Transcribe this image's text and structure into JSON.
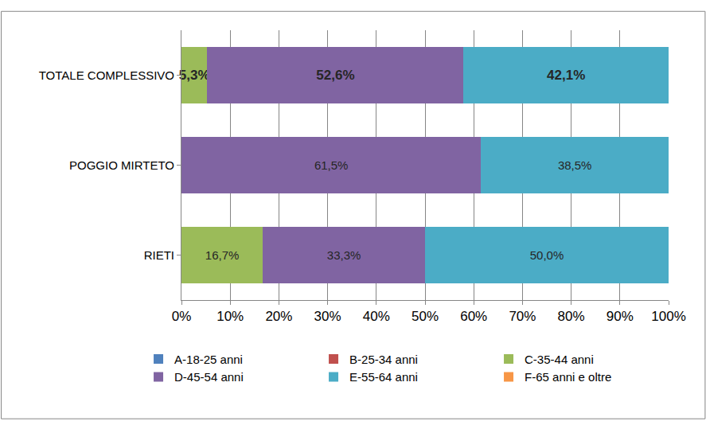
{
  "chart_data": {
    "type": "bar",
    "orientation": "horizontal",
    "stacked": true,
    "data_labels": true,
    "grid": true,
    "legend": "bottom",
    "categories": [
      "RIETI",
      "POGGIO MIRTETO",
      "TOTALE COMPLESSIVO"
    ],
    "series": [
      {
        "name": "A-18-25 anni",
        "color": "#4F81BD",
        "values": [
          0,
          0,
          0
        ],
        "value_labels": [
          null,
          null,
          null
        ]
      },
      {
        "name": "B-25-34 anni",
        "color": "#C0504D",
        "values": [
          0,
          0,
          0
        ],
        "value_labels": [
          null,
          null,
          null
        ]
      },
      {
        "name": "C-35-44 anni",
        "color": "#9BBB59",
        "values": [
          16.7,
          0,
          5.3
        ],
        "value_labels": [
          "16,7%",
          null,
          "5,3%"
        ]
      },
      {
        "name": "D-45-54 anni",
        "color": "#8064A2",
        "values": [
          33.3,
          61.5,
          52.6
        ],
        "value_labels": [
          "33,3%",
          "61,5%",
          "52,6%"
        ]
      },
      {
        "name": "E-55-64 anni",
        "color": "#4BACC6",
        "values": [
          50.0,
          38.5,
          42.1
        ],
        "value_labels": [
          "50,0%",
          "38,5%",
          "42,1%"
        ]
      },
      {
        "name": "F-65 anni e oltre",
        "color": "#F79646",
        "values": [
          0,
          0,
          0
        ],
        "value_labels": [
          null,
          null,
          null
        ]
      }
    ],
    "xlim": [
      0,
      100
    ],
    "xticks": [
      {
        "value": 0,
        "label": "0%"
      },
      {
        "value": 10,
        "label": "10%"
      },
      {
        "value": 20,
        "label": "20%"
      },
      {
        "value": 30,
        "label": "30%"
      },
      {
        "value": 40,
        "label": "40%"
      },
      {
        "value": 50,
        "label": "50%"
      },
      {
        "value": 60,
        "label": "60%"
      },
      {
        "value": 70,
        "label": "70%"
      },
      {
        "value": 80,
        "label": "80%"
      },
      {
        "value": 90,
        "label": "90%"
      },
      {
        "value": 100,
        "label": "100%"
      }
    ]
  }
}
